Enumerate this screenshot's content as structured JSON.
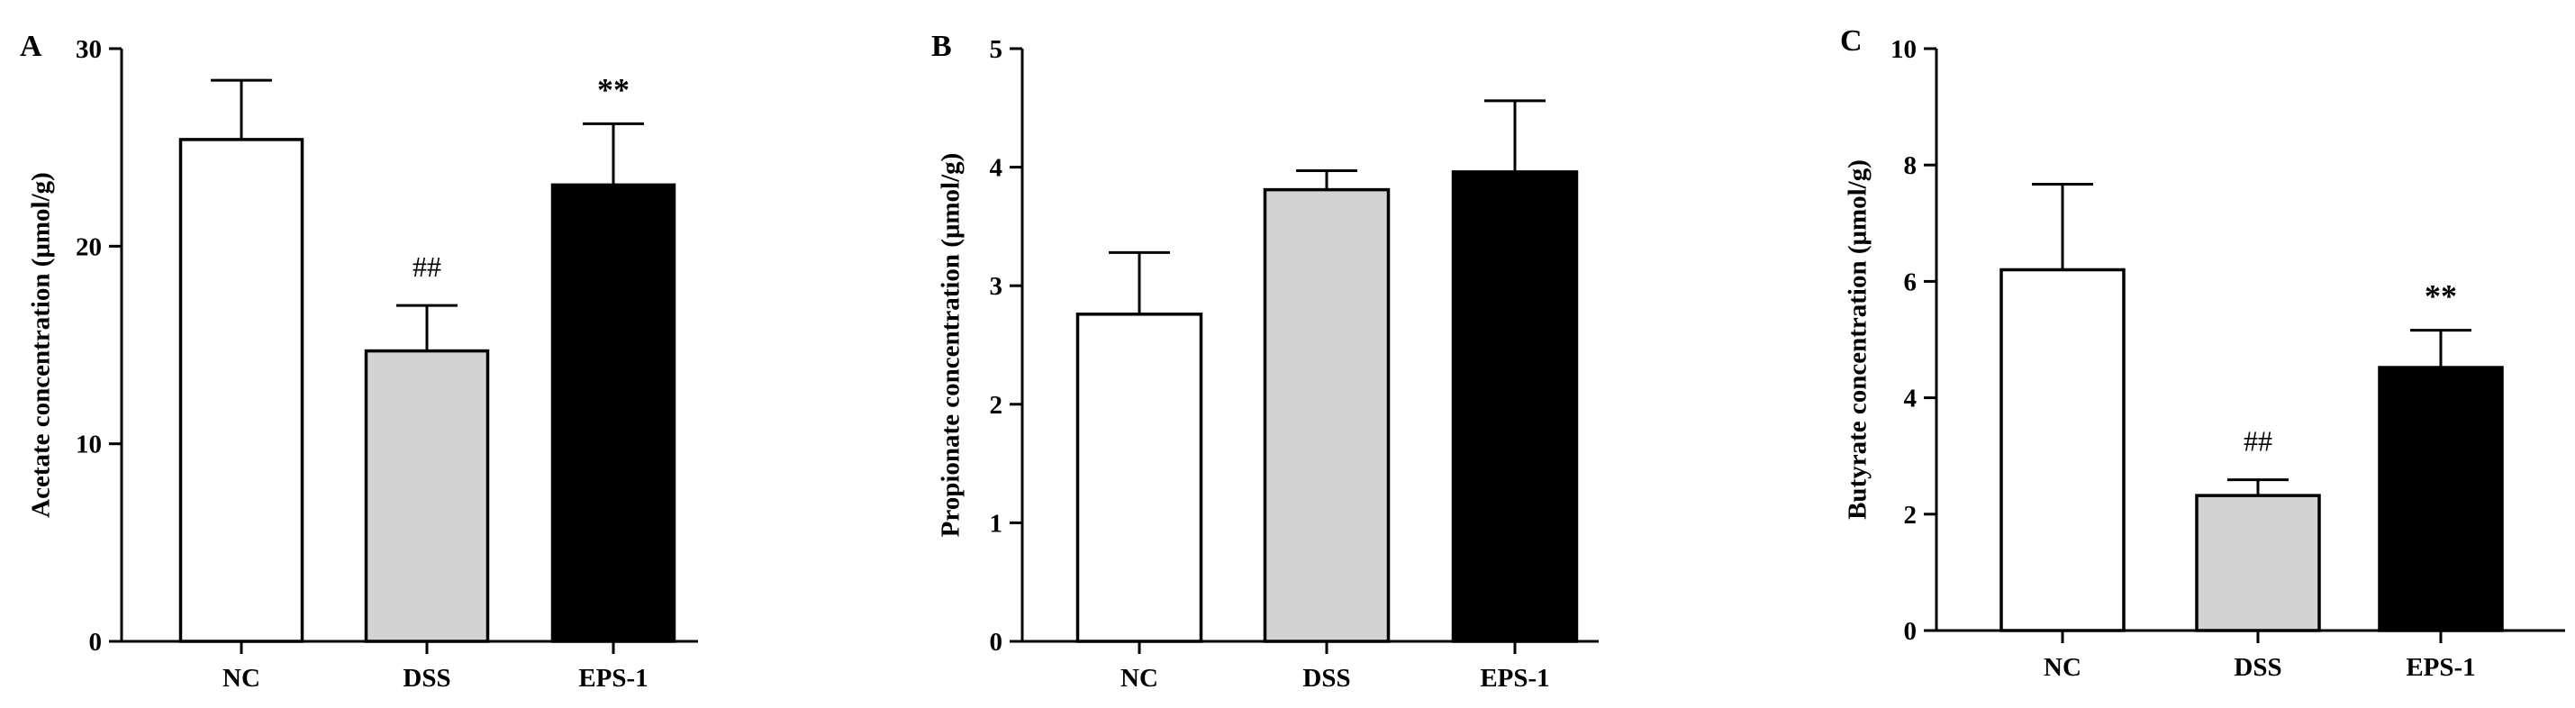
{
  "chart_data": [
    {
      "type": "bar",
      "panel": "A",
      "categories": [
        "NC",
        "DSS",
        "EPS-1"
      ],
      "values": [
        25.4,
        14.7,
        23.1
      ],
      "errors": [
        3.0,
        2.3,
        3.1
      ],
      "annotations": [
        "",
        "##",
        "**"
      ],
      "ylabel": "Acetate concentration (μmol/g)",
      "ylim": [
        0,
        30
      ],
      "yticks": [
        0,
        10,
        20,
        30
      ],
      "bar_colors": [
        "#ffffff",
        "#d3d3d3",
        "#000000"
      ]
    },
    {
      "type": "bar",
      "panel": "B",
      "categories": [
        "NC",
        "DSS",
        "EPS-1"
      ],
      "values": [
        2.76,
        3.81,
        3.96
      ],
      "errors": [
        0.52,
        0.16,
        0.6
      ],
      "annotations": [
        "",
        "",
        ""
      ],
      "ylabel": "Propionate concentration (μmol/g)",
      "ylim": [
        0,
        5
      ],
      "yticks": [
        0,
        1,
        2,
        3,
        4,
        5
      ],
      "bar_colors": [
        "#ffffff",
        "#d3d3d3",
        "#000000"
      ]
    },
    {
      "type": "bar",
      "panel": "C",
      "categories": [
        "NC",
        "DSS",
        "EPS-1"
      ],
      "values": [
        6.2,
        2.32,
        4.52
      ],
      "errors": [
        1.47,
        0.27,
        0.64
      ],
      "annotations": [
        "",
        "##",
        "**"
      ],
      "ylabel": "Butyrate concentration (μmol/g)",
      "ylim": [
        0,
        10
      ],
      "yticks": [
        0,
        2,
        4,
        6,
        8,
        10
      ],
      "bar_colors": [
        "#ffffff",
        "#d3d3d3",
        "#000000"
      ]
    }
  ]
}
